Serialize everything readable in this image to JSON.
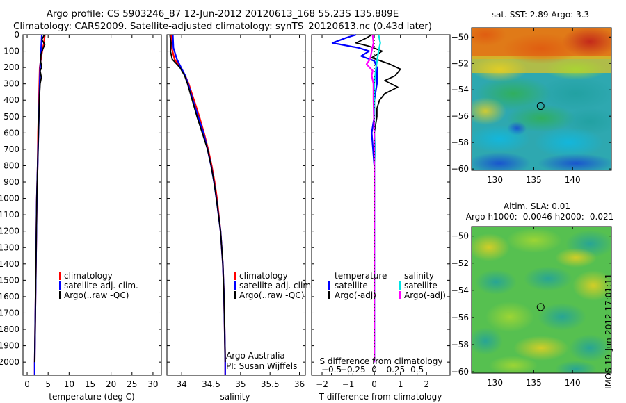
{
  "header": {
    "line1": "Argo profile: CS 5903246_87 12-Jun-2012 20120613_168 55.23S 135.889E",
    "line2": "Climatology: CARS2009. Satellite-adjusted climatology: synTS_20120613.nc (0.43d later)"
  },
  "colors": {
    "climatology": "#ff0000",
    "satellite": "#0000ff",
    "argo": "#000000",
    "satellite_salinity": "#00e5e5",
    "argo_salinity": "#ff00ff"
  },
  "chart_data": [
    {
      "id": "temperature",
      "type": "line",
      "xlabel": "temperature (deg C)",
      "ylabel": "",
      "xlim": [
        -1,
        32
      ],
      "ylim": [
        2080,
        0
      ],
      "xticks": [
        0,
        5,
        10,
        15,
        20,
        25,
        30
      ],
      "xtick_labels": [
        "0",
        "5",
        "10",
        "15",
        "20",
        "25",
        "30"
      ],
      "yticks": [
        0,
        100,
        200,
        300,
        400,
        500,
        600,
        700,
        800,
        900,
        1000,
        1100,
        1200,
        1300,
        1400,
        1500,
        1600,
        1700,
        1800,
        1900,
        2000
      ],
      "ytick_labels": [
        "0",
        "100",
        "200",
        "300",
        "400",
        "500",
        "600",
        "700",
        "800",
        "900",
        "1000",
        "1100",
        "1200",
        "1300",
        "1400",
        "1500",
        "1600",
        "1700",
        "1800",
        "1900",
        "2000"
      ],
      "legend": [
        "climatology",
        "satellite-adj. clim.",
        "Argo(..raw -QC)"
      ],
      "legend_colors": [
        "#ff0000",
        "#0000ff",
        "#000000"
      ],
      "series": [
        {
          "name": "climatology",
          "color": "#ff0000",
          "depth": [
            0,
            50,
            100,
            150,
            200,
            300,
            400,
            600,
            800,
            1000,
            1200,
            1400,
            1600,
            1800,
            2000,
            2080
          ],
          "values": [
            4.2,
            4.0,
            3.6,
            3.3,
            3.0,
            2.9,
            2.8,
            2.6,
            2.5,
            2.3,
            2.2,
            2.1,
            2.0,
            1.9,
            1.8,
            1.8
          ]
        },
        {
          "name": "satellite-adj. clim.",
          "color": "#0000ff",
          "depth": [
            0,
            50,
            100,
            150,
            200,
            300,
            400,
            600,
            800,
            1000,
            1200,
            1400,
            1600,
            1800,
            2000,
            2080
          ],
          "values": [
            3.5,
            3.4,
            3.3,
            3.2,
            3.1,
            3.0,
            2.9,
            2.7,
            2.5,
            2.3,
            2.2,
            2.1,
            2.0,
            1.9,
            1.8,
            1.8
          ]
        },
        {
          "name": "Argo(..raw -QC)",
          "color": "#000000",
          "depth": [
            0,
            30,
            60,
            90,
            120,
            160,
            200,
            220,
            260,
            300,
            400,
            600,
            800,
            1000,
            1400,
            2000
          ],
          "values": [
            4.1,
            3.5,
            4.2,
            3.7,
            3.3,
            3.2,
            3.5,
            3.1,
            3.4,
            3.1,
            2.9,
            2.7,
            2.5,
            2.3,
            2.1,
            1.8
          ]
        }
      ]
    },
    {
      "id": "salinity",
      "type": "line",
      "xlabel": "salinity",
      "ylabel": "",
      "xlim": [
        33.75,
        36.1
      ],
      "ylim": [
        2080,
        0
      ],
      "xticks": [
        34,
        34.5,
        35,
        35.5,
        36
      ],
      "xtick_labels": [
        "34",
        "34.5",
        "35",
        "35.5",
        "36"
      ],
      "legend": [
        "climatology",
        "satellite-adj. clim.",
        "Argo(..raw -QC)"
      ],
      "legend_colors": [
        "#ff0000",
        "#0000ff",
        "#000000"
      ],
      "annotation": [
        "Argo Australia",
        "PI: Susan Wijffels"
      ],
      "series": [
        {
          "name": "climatology",
          "color": "#ff0000",
          "depth": [
            0,
            80,
            150,
            200,
            250,
            300,
            400,
            500,
            600,
            700,
            800,
            900,
            1000,
            1200,
            1400,
            1600,
            1800,
            2000,
            2080
          ],
          "values": [
            33.82,
            33.83,
            33.88,
            33.98,
            34.06,
            34.12,
            34.21,
            34.3,
            34.38,
            34.45,
            34.51,
            34.56,
            34.6,
            34.66,
            34.7,
            34.72,
            34.73,
            34.74,
            34.74
          ]
        },
        {
          "name": "satellite-adj. clim.",
          "color": "#0000ff",
          "depth": [
            0,
            80,
            150,
            200,
            250,
            300,
            400,
            500,
            600,
            700,
            800,
            900,
            1000,
            1200,
            1400,
            1600,
            1800,
            2000,
            2080
          ],
          "values": [
            33.85,
            33.86,
            33.92,
            33.99,
            34.06,
            34.11,
            34.19,
            34.28,
            34.37,
            34.44,
            34.5,
            34.55,
            34.59,
            34.66,
            34.7,
            34.72,
            34.73,
            34.74,
            34.74
          ]
        },
        {
          "name": "Argo(..raw -QC)",
          "color": "#000000",
          "depth": [
            0,
            50,
            100,
            150,
            200,
            250,
            300,
            400,
            500,
            600,
            700,
            800,
            900,
            1000,
            1200,
            1400,
            1600,
            1800,
            2000
          ],
          "values": [
            33.8,
            33.82,
            33.81,
            33.84,
            33.97,
            34.05,
            34.1,
            34.18,
            34.26,
            34.35,
            34.44,
            34.5,
            34.55,
            34.59,
            34.66,
            34.7,
            34.72,
            34.73,
            34.74
          ]
        }
      ]
    },
    {
      "id": "difference",
      "type": "line",
      "xlabel": "T difference from climatology",
      "xlabel_top": "S difference from climatology",
      "xlim": [
        -2.4,
        2.9
      ],
      "ylim": [
        2080,
        0
      ],
      "xticks": [
        -2,
        -1,
        0,
        1,
        2
      ],
      "xtick_labels": [
        "−2",
        "−1",
        "0",
        "1",
        "2"
      ],
      "sticks": [
        -0.5,
        -0.25,
        0,
        0.25,
        0.5
      ],
      "stick_labels": [
        "−0.5",
        "−0.25",
        "0",
        "0.25",
        "0.5"
      ],
      "legend_left_title": "temperature",
      "legend_left": [
        "satellite",
        "Argo(-adj)"
      ],
      "legend_left_colors": [
        "#0000ff",
        "#000000"
      ],
      "legend_right_title": "salinity",
      "legend_right": [
        "satellite",
        "Argo(-adj)"
      ],
      "legend_right_colors": [
        "#00e5e5",
        "#ff00ff"
      ],
      "series": [
        {
          "name": "satellite",
          "group": "temperature",
          "color": "#0000ff",
          "depth": [
            0,
            20,
            50,
            80,
            100,
            130,
            160,
            200,
            250,
            300,
            400,
            500,
            600,
            800,
            1000,
            1500,
            2000
          ],
          "values": [
            -0.7,
            -1.1,
            -1.6,
            -0.6,
            -0.2,
            -0.5,
            0.0,
            0.1,
            0.1,
            0.1,
            0.0,
            0.0,
            -0.1,
            0.0,
            0.0,
            0.0,
            0.0
          ]
        },
        {
          "name": "Argo(-adj)",
          "group": "temperature",
          "color": "#000000",
          "depth": [
            0,
            20,
            50,
            70,
            100,
            140,
            180,
            210,
            250,
            280,
            320,
            360,
            400,
            450,
            500,
            600,
            800,
            1000,
            1500,
            2000
          ],
          "values": [
            -0.1,
            -0.3,
            -0.7,
            -0.2,
            0.3,
            -0.1,
            0.6,
            1.0,
            0.8,
            0.4,
            0.9,
            0.4,
            0.2,
            0.1,
            0.1,
            0.0,
            0.0,
            0.0,
            0.0,
            0.0
          ]
        },
        {
          "name": "satellite",
          "group": "salinity",
          "color": "#00e5e5",
          "depth": [
            0,
            50,
            100,
            200,
            300,
            400,
            500,
            600,
            700,
            800,
            900,
            1000,
            1500,
            2000
          ],
          "values": [
            0.05,
            0.07,
            0.05,
            0.02,
            0.0,
            0.0,
            0.0,
            0.0,
            0.01,
            0.0,
            0.0,
            0.0,
            0.0,
            0.0
          ]
        },
        {
          "name": "Argo(-adj)",
          "group": "salinity",
          "color": "#ff00ff",
          "depth": [
            0,
            50,
            100,
            150,
            180,
            220,
            250,
            300,
            400,
            600,
            800,
            1000,
            1500,
            2000
          ],
          "values": [
            -0.02,
            -0.01,
            -0.03,
            -0.05,
            -0.09,
            -0.02,
            -0.03,
            -0.01,
            -0.01,
            0.0,
            0.0,
            0.0,
            0.0,
            0.0
          ]
        }
      ]
    },
    {
      "id": "sst_map",
      "type": "heatmap",
      "title": "sat. SST: 2.89 Argo: 3.3",
      "xlim": [
        127,
        145
      ],
      "ylim": [
        -60.1,
        -49.3
      ],
      "xticks": [
        130,
        135,
        140
      ],
      "xtick_labels": [
        "130",
        "135",
        "140"
      ],
      "yticks": [
        -50,
        -52,
        -54,
        -56,
        -58,
        -60
      ],
      "ytick_labels": [
        "−50",
        "−52",
        "−54",
        "−56",
        "−58",
        "−60"
      ],
      "marker": [
        135.889,
        -55.23
      ]
    },
    {
      "id": "sla_map",
      "type": "heatmap",
      "title": [
        "Altim. SLA: 0.01",
        "Argo h1000: -0.0046 h2000: -0.021"
      ],
      "xlim": [
        127,
        145
      ],
      "ylim": [
        -60.1,
        -49.3
      ],
      "xticks": [
        130,
        135,
        140
      ],
      "xtick_labels": [
        "130",
        "135",
        "140"
      ],
      "yticks": [
        -50,
        -52,
        -54,
        -56,
        -58,
        -60
      ],
      "ytick_labels": [
        "−50",
        "−52",
        "−54",
        "−56",
        "−58",
        "−60"
      ],
      "marker": [
        135.889,
        -55.23
      ]
    }
  ],
  "stamp": "IMOS 19-Jun-2012 17:01:11"
}
